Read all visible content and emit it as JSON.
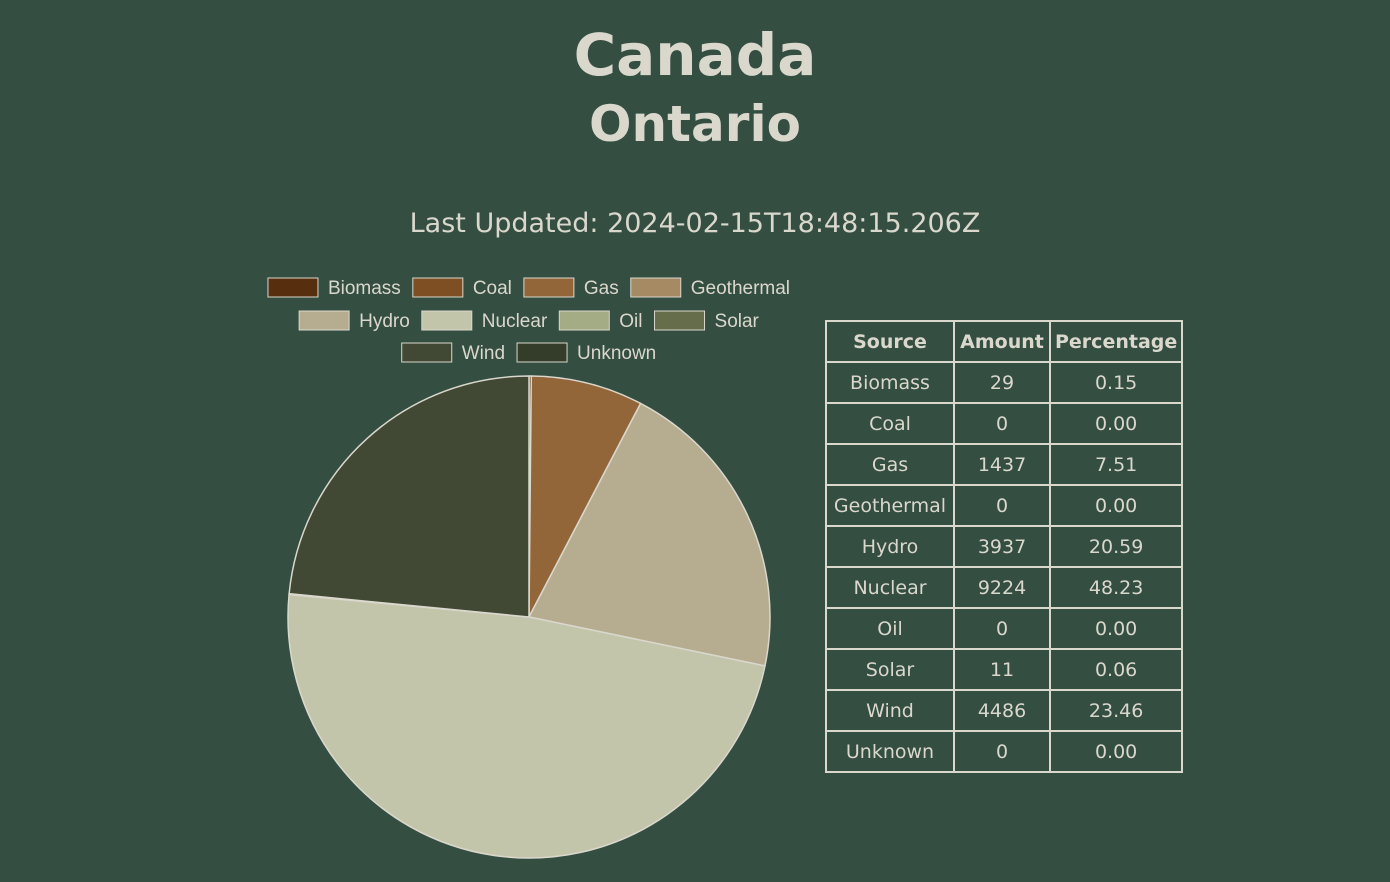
{
  "header": {
    "country": "Canada",
    "region": "Ontario",
    "updated_label": "Last Updated: 2024-02-15T18:48:15.206Z"
  },
  "table": {
    "headers": [
      "Source",
      "Amount",
      "Percentage"
    ],
    "rows": [
      {
        "source": "Biomass",
        "amount": "29",
        "percentage": "0.15"
      },
      {
        "source": "Coal",
        "amount": "0",
        "percentage": "0.00"
      },
      {
        "source": "Gas",
        "amount": "1437",
        "percentage": "7.51"
      },
      {
        "source": "Geothermal",
        "amount": "0",
        "percentage": "0.00"
      },
      {
        "source": "Hydro",
        "amount": "3937",
        "percentage": "20.59"
      },
      {
        "source": "Nuclear",
        "amount": "9224",
        "percentage": "48.23"
      },
      {
        "source": "Oil",
        "amount": "0",
        "percentage": "0.00"
      },
      {
        "source": "Solar",
        "amount": "11",
        "percentage": "0.06"
      },
      {
        "source": "Wind",
        "amount": "4486",
        "percentage": "23.46"
      },
      {
        "source": "Unknown",
        "amount": "0",
        "percentage": "0.00"
      }
    ]
  },
  "chart_data": {
    "type": "pie",
    "title": "",
    "legend_position": "top",
    "categories": [
      "Biomass",
      "Coal",
      "Gas",
      "Geothermal",
      "Hydro",
      "Nuclear",
      "Oil",
      "Solar",
      "Wind",
      "Unknown"
    ],
    "values": [
      29,
      0,
      1437,
      0,
      3937,
      9224,
      0,
      11,
      4486,
      0
    ],
    "colors": [
      "#582f0e",
      "#7f4f24",
      "#936639",
      "#a68a64",
      "#b6ad90",
      "#c2c5aa",
      "#a4ac86",
      "#656d4a",
      "#414833",
      "#333d29"
    ],
    "border_color": "#dad7cd"
  }
}
